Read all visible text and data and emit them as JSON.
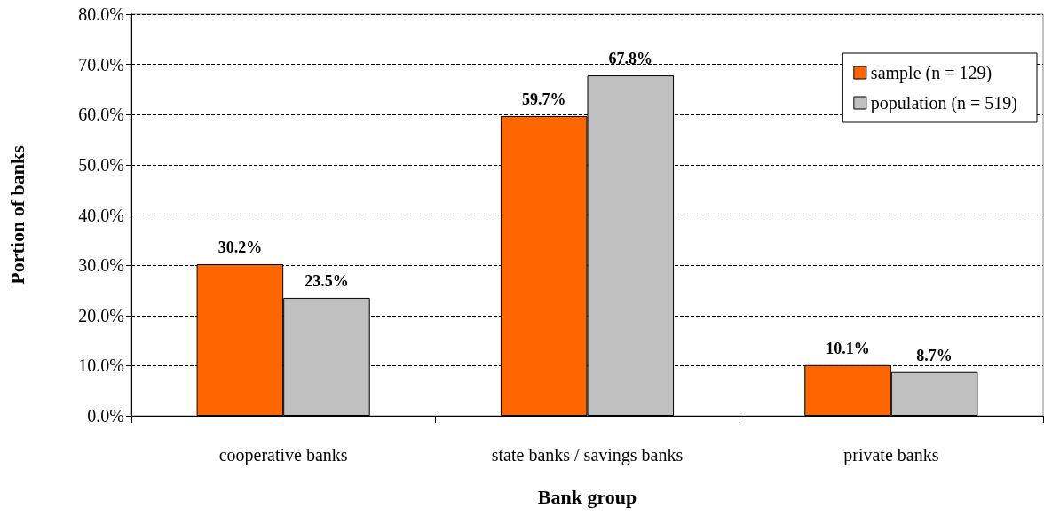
{
  "chart_data": {
    "type": "bar",
    "xlabel": "Bank group",
    "ylabel": "Portion of banks",
    "categories": [
      "cooperative banks",
      "state banks / savings banks",
      "private banks"
    ],
    "series": [
      {
        "name": "sample (n = 129)",
        "color": "#ff6600",
        "values": [
          30.2,
          59.7,
          10.1
        ],
        "value_labels": [
          "30.2%",
          "59.7%",
          "10.1%"
        ]
      },
      {
        "name": "population (n = 519)",
        "color": "#c0c0c0",
        "values": [
          23.5,
          67.8,
          8.7
        ],
        "value_labels": [
          "23.5%",
          "67.8%",
          "8.7%"
        ]
      }
    ],
    "ylim": [
      0,
      80
    ],
    "yticks": [
      {
        "value": 0,
        "label": "0.0%"
      },
      {
        "value": 10,
        "label": "10.0%"
      },
      {
        "value": 20,
        "label": "20.0%"
      },
      {
        "value": 30,
        "label": "30.0%"
      },
      {
        "value": 40,
        "label": "40.0%"
      },
      {
        "value": 50,
        "label": "50.0%"
      },
      {
        "value": 60,
        "label": "60.0%"
      },
      {
        "value": 70,
        "label": "70.0%"
      },
      {
        "value": 80,
        "label": "80.0%"
      }
    ],
    "grid": "y",
    "legend": "top right",
    "line_style": "dashed"
  }
}
